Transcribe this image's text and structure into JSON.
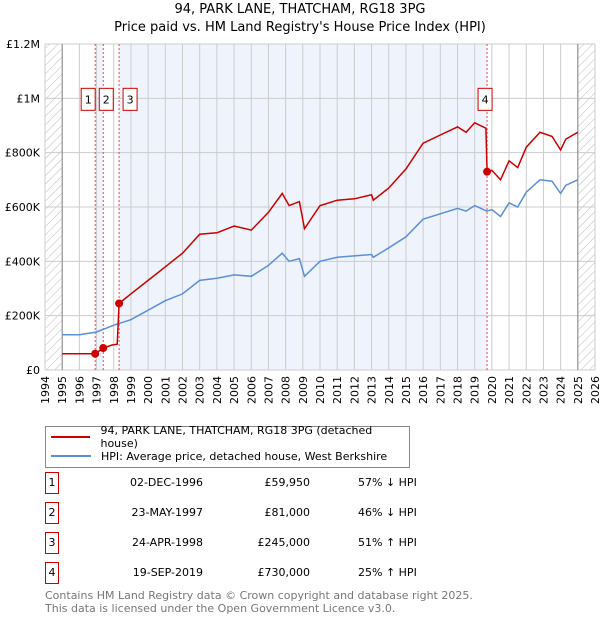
{
  "title": "94, PARK LANE, THATCHAM, RG18 3PG",
  "subtitle": "Price paid vs. HM Land Registry's House Price Index (HPI)",
  "chart_data": {
    "type": "line",
    "xlim": [
      1994,
      2026
    ],
    "ylim": [
      0,
      1200000
    ],
    "x_ticks": [
      "1994",
      "1995",
      "1996",
      "1997",
      "1998",
      "1999",
      "2000",
      "2001",
      "2002",
      "2003",
      "2004",
      "2005",
      "2006",
      "2007",
      "2008",
      "2009",
      "2010",
      "2011",
      "2012",
      "2013",
      "2014",
      "2015",
      "2016",
      "2017",
      "2018",
      "2019",
      "2020",
      "2021",
      "2022",
      "2023",
      "2024",
      "2025",
      "2026"
    ],
    "y_ticks": [
      {
        "v": 0,
        "label": "£0"
      },
      {
        "v": 200000,
        "label": "£200K"
      },
      {
        "v": 400000,
        "label": "£400K"
      },
      {
        "v": 600000,
        "label": "£600K"
      },
      {
        "v": 800000,
        "label": "£800K"
      },
      {
        "v": 1000000,
        "label": "£1M"
      },
      {
        "v": 1200000,
        "label": "£1.2M"
      }
    ],
    "series": [
      {
        "name": "94, PARK LANE, THATCHAM, RG18 3PG (detached house)",
        "color": "#cc0000",
        "x": [
          1995,
          1996.92,
          1997.39,
          1997.9,
          1998.2,
          1998.31,
          1999,
          2000,
          2001,
          2002,
          2003,
          2004,
          2005,
          2006,
          2007,
          2007.8,
          2008.2,
          2008.8,
          2009.1,
          2010,
          2011,
          2012,
          2013,
          2013.1,
          2014,
          2015,
          2016,
          2017,
          2018,
          2018.5,
          2019,
          2019.65,
          2019.72,
          2020,
          2020.5,
          2021,
          2021.5,
          2022,
          2022.8,
          2023.5,
          2024,
          2024.3,
          2025
        ],
        "y": [
          60000,
          59950,
          81000,
          92000,
          95000,
          245000,
          280000,
          330000,
          380000,
          430000,
          500000,
          505000,
          530000,
          515000,
          580000,
          650000,
          605000,
          620000,
          520000,
          605000,
          625000,
          630000,
          645000,
          625000,
          670000,
          740000,
          835000,
          865000,
          895000,
          875000,
          910000,
          890000,
          730000,
          735000,
          700000,
          770000,
          745000,
          820000,
          875000,
          860000,
          810000,
          850000,
          875000
        ]
      },
      {
        "name": "HPI: Average price, detached house, West Berkshire",
        "color": "#5b8fd4",
        "x": [
          1995,
          1996,
          1997,
          1998,
          1999,
          2000,
          2001,
          2002,
          2003,
          2004,
          2005,
          2006,
          2007,
          2007.8,
          2008.2,
          2008.8,
          2009.1,
          2010,
          2011,
          2012,
          2013,
          2013.1,
          2014,
          2015,
          2016,
          2017,
          2018,
          2018.5,
          2019,
          2019.7,
          2020,
          2020.5,
          2021,
          2021.5,
          2022,
          2022.8,
          2023.5,
          2024,
          2024.3,
          2025
        ],
        "y": [
          130000,
          130000,
          140000,
          165000,
          185000,
          220000,
          255000,
          280000,
          330000,
          338000,
          350000,
          345000,
          385000,
          430000,
          400000,
          410000,
          345000,
          400000,
          415000,
          420000,
          425000,
          415000,
          450000,
          490000,
          555000,
          575000,
          595000,
          585000,
          605000,
          585000,
          590000,
          565000,
          615000,
          600000,
          655000,
          700000,
          695000,
          650000,
          680000,
          700000
        ]
      }
    ],
    "sales": [
      {
        "n": "1",
        "x": 1996.92,
        "y": 59950
      },
      {
        "n": "2",
        "x": 1997.39,
        "y": 81000
      },
      {
        "n": "3",
        "x": 1998.31,
        "y": 245000
      },
      {
        "n": "4",
        "x": 2019.72,
        "y": 730000
      }
    ]
  },
  "legend": [
    {
      "label": "94, PARK LANE, THATCHAM, RG18 3PG (detached house)",
      "color": "#cc0000"
    },
    {
      "label": "HPI: Average price, detached house, West Berkshire",
      "color": "#5b8fd4"
    }
  ],
  "table": [
    {
      "n": "1",
      "date": "02-DEC-1996",
      "price": "£59,950",
      "hpi": "57% ↓ HPI"
    },
    {
      "n": "2",
      "date": "23-MAY-1997",
      "price": "£81,000",
      "hpi": "46% ↓ HPI"
    },
    {
      "n": "3",
      "date": "24-APR-1998",
      "price": "£245,000",
      "hpi": "51% ↑ HPI"
    },
    {
      "n": "4",
      "date": "19-SEP-2019",
      "price": "£730,000",
      "hpi": "25% ↑ HPI"
    }
  ],
  "footer": [
    "Contains HM Land Registry data © Crown copyright and database right 2025.",
    "This data is licensed under the Open Government Licence v3.0."
  ]
}
